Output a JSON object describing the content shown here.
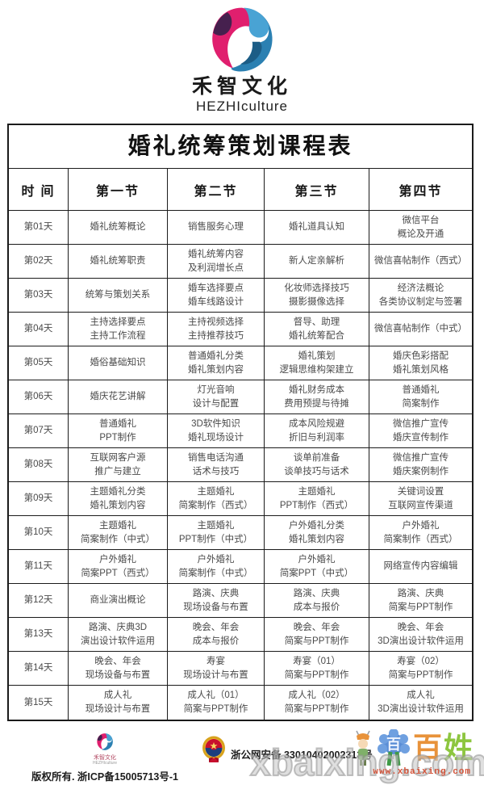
{
  "header": {
    "brand_cn": "禾智文化",
    "brand_en": "HEZHIculture"
  },
  "table": {
    "title": "婚礼统筹策划课程表",
    "columns": [
      "时  间",
      "第一节",
      "第二节",
      "第三节",
      "第四节"
    ],
    "rows": [
      {
        "day": "第01天",
        "sections": [
          "婚礼统筹概论",
          "销售服务心理",
          "婚礼道具认知",
          "微信平台\n概论及开通"
        ]
      },
      {
        "day": "第02天",
        "sections": [
          "婚礼统筹职责",
          "婚礼统筹内容\n及利润增长点",
          "新人定亲解析",
          "微信喜帖制作（西式）"
        ]
      },
      {
        "day": "第03天",
        "sections": [
          "统筹与策划关系",
          "婚车选择要点\n婚车线路设计",
          "化妆师选择技巧\n摄影摄像选择",
          "经济法概论\n各类协议制定与签署"
        ]
      },
      {
        "day": "第04天",
        "sections": [
          "主持选择要点\n主持工作流程",
          "主持视频选择\n主持推荐技巧",
          "督导、助理\n婚礼统筹配合",
          "微信喜帖制作（中式）"
        ]
      },
      {
        "day": "第05天",
        "sections": [
          "婚俗基础知识",
          "普通婚礼分类\n婚礼策划内容",
          "婚礼策划\n逻辑思维构架建立",
          "婚庆色彩搭配\n婚礼策划风格"
        ]
      },
      {
        "day": "第06天",
        "sections": [
          "婚庆花艺讲解",
          "灯光音响\n设计与配置",
          "婚礼财务成本\n费用预提与待摊",
          "普通婚礼\n简案制作"
        ]
      },
      {
        "day": "第07天",
        "sections": [
          "普通婚礼\nPPT制作",
          "3D软件知识\n婚礼现场设计",
          "成本风险规避\n折旧与利润率",
          "微信推广宣传\n婚庆宣传制作"
        ]
      },
      {
        "day": "第08天",
        "sections": [
          "互联网客户源\n推广与建立",
          "销售电话沟通\n话术与技巧",
          "谈单前准备\n谈单技巧与话术",
          "微信推广宣传\n婚庆案例制作"
        ]
      },
      {
        "day": "第09天",
        "sections": [
          "主题婚礼分类\n婚礼策划内容",
          "主题婚礼\n简案制作（西式）",
          "主题婚礼\nPPT制作（西式）",
          "关键词设置\n互联网宣传渠道"
        ]
      },
      {
        "day": "第10天",
        "sections": [
          "主题婚礼\n简案制作（中式）",
          "主题婚礼\nPPT制作（中式）",
          "户外婚礼分类\n婚礼策划内容",
          "户外婚礼\n简案制作（西式）"
        ]
      },
      {
        "day": "第11天",
        "sections": [
          "户外婚礼\n简案PPT（西式）",
          "户外婚礼\n简案制作（中式）",
          "户外婚礼\n简案PPT（中式）",
          "网络宣传内容编辑"
        ]
      },
      {
        "day": "第12天",
        "sections": [
          "商业演出概论",
          "路演、庆典\n现场设备与布置",
          "路演、庆典\n成本与报价",
          "路演、庆典\n简案与PPT制作"
        ]
      },
      {
        "day": "第13天",
        "sections": [
          "路演、庆典3D\n演出设计软件运用",
          "晚会、年会\n成本与报价",
          "晚会、年会\n简案与PPT制作",
          "晚会、年会\n3D演出设计软件运用"
        ]
      },
      {
        "day": "第14天",
        "sections": [
          "晚会、年会\n现场设备与布置",
          "寿宴\n现场设计与布置",
          "寿宴（01）\n简案与PPT制作",
          "寿宴（02）\n简案与PPT制作"
        ]
      },
      {
        "day": "第15天",
        "sections": [
          "成人礼\n现场设计与布置",
          "成人礼（01）\n简案与PPT制作",
          "成人礼（02）\n简案与PPT制作",
          "成人礼\n3D演出设计软件运用"
        ]
      }
    ]
  },
  "footer": {
    "brand_cn": "禾智文化",
    "brand_en": "HEZHIculture",
    "copyright": "版权所有. 浙ICP备15005713号-1",
    "police_text": "浙公网安备 33010402002313号"
  },
  "watermark": {
    "big_text": "xbaixing.com",
    "small_text": "www.xbaixing.com",
    "glyph_bai": "百",
    "glyph_xing": "姓"
  },
  "colors": {
    "logo_pink": "#e01f6e",
    "logo_purple": "#46204e",
    "logo_blue": "#2b80b2",
    "logo_blue_light": "#49a3d4",
    "badge_gold": "#d8a21c",
    "badge_red": "#c8102e",
    "badge_blue": "#1c3e7e"
  }
}
